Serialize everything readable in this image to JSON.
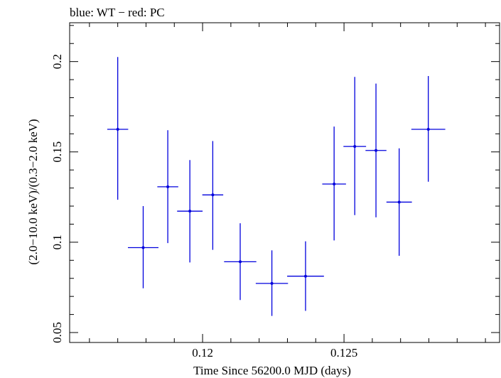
{
  "chart_data": {
    "type": "scatter",
    "title": "blue: WT − red: PC",
    "xlabel": "Time Since 56200.0 MJD (days)",
    "ylabel": "(2.0−10.0 keV)/(0.3−2.0 keV)",
    "xlim": [
      0.1153,
      0.1305
    ],
    "ylim": [
      0.0445,
      0.2215
    ],
    "x_ticks": [
      0.12,
      0.125
    ],
    "x_tick_labels": [
      "0.12",
      "0.125"
    ],
    "y_ticks": [
      0.05,
      0.1,
      0.15,
      0.2
    ],
    "y_tick_labels": [
      "0.05",
      "0.1",
      "0.15",
      "0.2"
    ],
    "grid": false,
    "legend": "none",
    "series": [
      {
        "color": "#0000dd",
        "points": [
          {
            "x": 0.117,
            "xerr": 0.00037,
            "y": 0.1625,
            "ylo": 0.1235,
            "yhi": 0.2025
          },
          {
            "x": 0.1179,
            "xerr": 0.00054,
            "y": 0.097,
            "ylo": 0.0745,
            "yhi": 0.12
          },
          {
            "x": 0.11877,
            "xerr": 0.00037,
            "y": 0.1307,
            "ylo": 0.0995,
            "yhi": 0.162
          },
          {
            "x": 0.11955,
            "xerr": 0.00045,
            "y": 0.1172,
            "ylo": 0.0888,
            "yhi": 0.1455
          },
          {
            "x": 0.12036,
            "xerr": 0.00037,
            "y": 0.1262,
            "ylo": 0.0958,
            "yhi": 0.156
          },
          {
            "x": 0.12133,
            "xerr": 0.00057,
            "y": 0.0892,
            "ylo": 0.068,
            "yhi": 0.1105
          },
          {
            "x": 0.12245,
            "xerr": 0.00057,
            "y": 0.0772,
            "ylo": 0.0592,
            "yhi": 0.0955
          },
          {
            "x": 0.12364,
            "xerr": 0.00065,
            "y": 0.0812,
            "ylo": 0.062,
            "yhi": 0.1005
          },
          {
            "x": 0.12465,
            "xerr": 0.00042,
            "y": 0.1322,
            "ylo": 0.101,
            "yhi": 0.164
          },
          {
            "x": 0.12538,
            "xerr": 0.0004,
            "y": 0.153,
            "ylo": 0.115,
            "yhi": 0.1915
          },
          {
            "x": 0.12613,
            "xerr": 0.00037,
            "y": 0.1508,
            "ylo": 0.1138,
            "yhi": 0.1878
          },
          {
            "x": 0.12695,
            "xerr": 0.00045,
            "y": 0.1222,
            "ylo": 0.0925,
            "yhi": 0.152
          },
          {
            "x": 0.12798,
            "xerr": 0.0006,
            "y": 0.1625,
            "ylo": 0.1335,
            "yhi": 0.192
          }
        ]
      }
    ]
  }
}
